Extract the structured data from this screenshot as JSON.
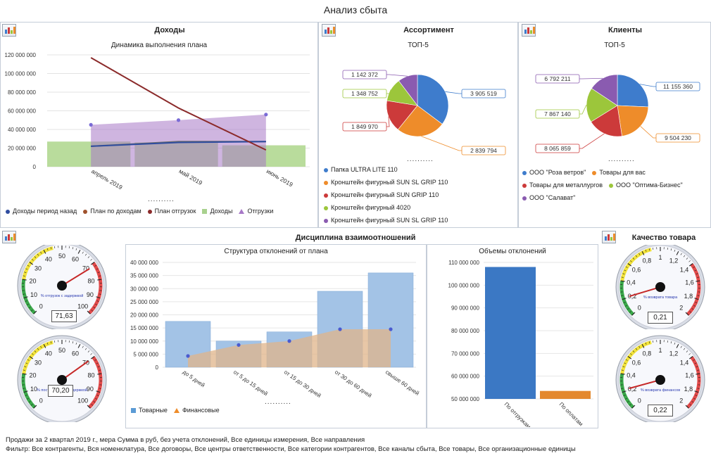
{
  "title": "Анализ сбыта",
  "revenue": {
    "header": "Доходы",
    "subtitle": "Динамика выполнения плана",
    "more": "..........",
    "legend": [
      {
        "label": "Доходы период назад",
        "color": "#2f4da0",
        "marker": "dot"
      },
      {
        "label": "План по доходам",
        "color": "#a0522d",
        "marker": "dot"
      },
      {
        "label": "План отгрузок",
        "color": "#8b2a2a",
        "marker": "dot"
      },
      {
        "label": "Доходы",
        "color": "#a9d18e",
        "marker": "square"
      },
      {
        "label": "Отгрузки",
        "color": "#a778c7",
        "marker": "triangle"
      }
    ]
  },
  "assortment": {
    "header": "Ассортимент",
    "subtitle": "ТОП-5",
    "more": "..........",
    "legend": [
      {
        "label": "Папка   ULTRA LITE  110",
        "color": "#3e7ccc"
      },
      {
        "label": "Кронштейн фигурный   SUN SL GRIP  110",
        "color": "#ee8c2a"
      },
      {
        "label": "Кронштейн фигурный   SUN GRIP  110",
        "color": "#cc3a3a"
      },
      {
        "label": "Кронштейн фигурный   4020",
        "color": "#9cc63b"
      },
      {
        "label": "Кронштейн фигурный   SUN SL GRIP  110",
        "color": "#8a5bb0"
      }
    ],
    "labels": [
      "3 905 519",
      "2 839 794",
      "1 849 970",
      "1 348 752",
      "1 142 372"
    ]
  },
  "clients": {
    "header": "Клиенты",
    "subtitle": "ТОП-5",
    "more": "..........",
    "legend": [
      {
        "label": "ООО \"Роза ветров\"",
        "color": "#3e7ccc"
      },
      {
        "label": "Товары для вас",
        "color": "#ee8c2a"
      },
      {
        "label": "Товары для металлургов",
        "color": "#cc3a3a"
      },
      {
        "label": "ООО \"Оптима-Бизнес\"",
        "color": "#9cc63b"
      },
      {
        "label": "ООО \"Салават\"",
        "color": "#8a5bb0"
      }
    ],
    "labels": [
      "11 155 360",
      "9 504 230",
      "8 065 859",
      "7 867 140",
      "6 792 211"
    ]
  },
  "discipline": {
    "header": "Дисциплина взаимоотношений",
    "structure_subtitle": "Структура отклонений от плана",
    "volume_subtitle": "Объемы отклонений",
    "more": "..........",
    "legend": [
      {
        "label": "Товарные",
        "color": "#5b9bd5",
        "marker": "square"
      },
      {
        "label": "Финансовые",
        "color": "#ee8c2a",
        "marker": "triangle"
      }
    ]
  },
  "quality": {
    "header": "Качество товара"
  },
  "gauges": {
    "left_top": {
      "caption": "% отгрузок с задержкой",
      "value": "71,63",
      "ticks": [
        "0",
        "10",
        "20",
        "30",
        "40",
        "50",
        "60",
        "70",
        "80",
        "90",
        "100"
      ],
      "level": 71.63,
      "max": 100
    },
    "left_bottom": {
      "caption": "% поступлений с задержкой",
      "value": "70,20",
      "ticks": [
        "0",
        "10",
        "20",
        "30",
        "40",
        "50",
        "60",
        "70",
        "80",
        "90",
        "100"
      ],
      "level": 70.2,
      "max": 100
    },
    "right_top": {
      "caption": "% возврата товара",
      "value": "0,21",
      "ticks": [
        "0",
        "0,2",
        "0,4",
        "0,6",
        "0,8",
        "1",
        "1,2",
        "1,4",
        "1,6",
        "1,8",
        "2"
      ],
      "level": 0.21,
      "max": 2
    },
    "right_bottom": {
      "caption": "% возврата финансов",
      "value": "0,22",
      "ticks": [
        "0",
        "0,2",
        "0,4",
        "0,6",
        "0,8",
        "1",
        "1,2",
        "1,4",
        "1,6",
        "1,8",
        "2"
      ],
      "level": 0.22,
      "max": 2
    }
  },
  "footer": {
    "line1": "Продажи за  2 квартал 2019 г., мера Сумма в руб, без учета отклонений, Все единицы измерения, Все направления",
    "line2": "Фильтр: Все контрагенты, Вся номенклатура, Все договоры, Все центры ответственности, Все категории контрагентов, Все каналы сбыта, Все товары, Все организационные единицы"
  },
  "chart_data": [
    {
      "id": "revenue",
      "type": "bar",
      "title": "Динамика выполнения плана",
      "categories": [
        "апрель 2019",
        "май 2019",
        "июнь 2019"
      ],
      "yticks": [
        "0",
        "20 000 000",
        "40 000 000",
        "60 000 000",
        "80 000 000",
        "100 000 000",
        "120 000 000"
      ],
      "ylim": [
        0,
        120000000
      ],
      "series": [
        {
          "name": "Доходы",
          "kind": "bar",
          "color": "#b9dc9c",
          "values": [
            27000000,
            26000000,
            23000000
          ]
        },
        {
          "name": "Отгрузки",
          "kind": "area",
          "color": "#a778c7",
          "values": [
            45000000,
            50000000,
            56000000
          ]
        },
        {
          "name": "План по доходам",
          "kind": "line",
          "color": "#6d6d6d",
          "values": [
            22000000,
            27000000,
            27000000
          ]
        },
        {
          "name": "Доходы период назад",
          "kind": "line",
          "color": "#2f4da0",
          "values": [
            22000000,
            26000000,
            27000000
          ]
        },
        {
          "name": "План отгрузок",
          "kind": "line",
          "color": "#8b2a2a",
          "values": [
            117000000,
            63000000,
            18000000
          ]
        }
      ]
    },
    {
      "id": "assortment",
      "type": "pie",
      "title": "ТОП-5",
      "slices": [
        {
          "label": "Папка   ULTRA LITE  110",
          "value": 3905519,
          "color": "#3e7ccc"
        },
        {
          "label": "Кронштейн фигурный   SUN SL GRIP  110",
          "value": 2839794,
          "color": "#ee8c2a"
        },
        {
          "label": "Кронштейн фигурный   SUN GRIP  110",
          "value": 1849970,
          "color": "#cc3a3a"
        },
        {
          "label": "Кронштейн фигурный   4020",
          "value": 1348752,
          "color": "#9cc63b"
        },
        {
          "label": "Кронштейн фигурный   SUN SL GRIP  110",
          "value": 1142372,
          "color": "#8a5bb0"
        }
      ]
    },
    {
      "id": "clients",
      "type": "pie",
      "title": "ТОП-5",
      "slices": [
        {
          "label": "ООО \"Роза ветров\"",
          "value": 11155360,
          "color": "#3e7ccc"
        },
        {
          "label": "Товары для вас",
          "value": 9504230,
          "color": "#ee8c2a"
        },
        {
          "label": "Товары для металлургов",
          "value": 8065859,
          "color": "#cc3a3a"
        },
        {
          "label": "ООО \"Оптима-Бизнес\"",
          "value": 7867140,
          "color": "#9cc63b"
        },
        {
          "label": "ООО \"Салават\"",
          "value": 6792211,
          "color": "#8a5bb0"
        }
      ]
    },
    {
      "id": "structure",
      "type": "bar",
      "title": "Структура отклонений от плана",
      "categories": [
        "до 5 дней",
        "от 5 до 15 дней",
        "от 15 до 30 дней",
        "от 30 до 60 дней",
        "свыше 60 дней"
      ],
      "yticks": [
        "0",
        "5 000 000",
        "10 000 000",
        "15 000 000",
        "20 000 000",
        "25 000 000",
        "30 000 000",
        "35 000 000",
        "40 000 000"
      ],
      "ylim": [
        0,
        40000000
      ],
      "series": [
        {
          "name": "Товарные",
          "kind": "bar",
          "color": "#a3c3e6",
          "values": [
            17500000,
            10000000,
            13500000,
            29000000,
            36000000
          ]
        },
        {
          "name": "Финансовые",
          "kind": "area",
          "color": "#e0b48a",
          "values": [
            4300000,
            8500000,
            10000000,
            14500000,
            14500000
          ]
        }
      ]
    },
    {
      "id": "volume",
      "type": "bar",
      "title": "Объемы отклонений",
      "categories": [
        "По отгрузкам",
        "По оплатам"
      ],
      "yticks": [
        "50 000 000",
        "60 000 000",
        "70 000 000",
        "80 000 000",
        "90 000 000",
        "100 000 000",
        "110 000 000"
      ],
      "ylim": [
        50000000,
        110000000
      ],
      "series": [
        {
          "name": "Объемы",
          "kind": "bar",
          "colors": [
            "#3b78c4",
            "#e3882d"
          ],
          "values": [
            108000000,
            53500000
          ]
        }
      ]
    }
  ]
}
